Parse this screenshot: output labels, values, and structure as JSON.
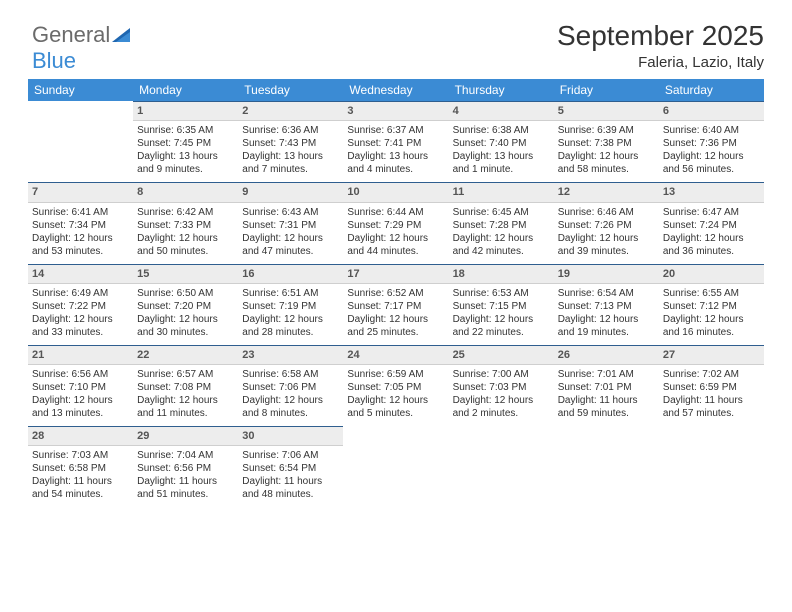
{
  "brand": {
    "name_a": "General",
    "name_b": "Blue"
  },
  "title": "September 2025",
  "location": "Faleria, Lazio, Italy",
  "colors": {
    "header_bg": "#3b8bd4",
    "header_fg": "#ffffff",
    "daynum_bg": "#ededed",
    "daynum_border_top": "#2f5e8f",
    "text": "#333333"
  },
  "weekdays": [
    "Sunday",
    "Monday",
    "Tuesday",
    "Wednesday",
    "Thursday",
    "Friday",
    "Saturday"
  ],
  "weeks": [
    [
      null,
      {
        "n": "1",
        "sr": "6:35 AM",
        "ss": "7:45 PM",
        "dl": "13 hours and 9 minutes."
      },
      {
        "n": "2",
        "sr": "6:36 AM",
        "ss": "7:43 PM",
        "dl": "13 hours and 7 minutes."
      },
      {
        "n": "3",
        "sr": "6:37 AM",
        "ss": "7:41 PM",
        "dl": "13 hours and 4 minutes."
      },
      {
        "n": "4",
        "sr": "6:38 AM",
        "ss": "7:40 PM",
        "dl": "13 hours and 1 minute."
      },
      {
        "n": "5",
        "sr": "6:39 AM",
        "ss": "7:38 PM",
        "dl": "12 hours and 58 minutes."
      },
      {
        "n": "6",
        "sr": "6:40 AM",
        "ss": "7:36 PM",
        "dl": "12 hours and 56 minutes."
      }
    ],
    [
      {
        "n": "7",
        "sr": "6:41 AM",
        "ss": "7:34 PM",
        "dl": "12 hours and 53 minutes."
      },
      {
        "n": "8",
        "sr": "6:42 AM",
        "ss": "7:33 PM",
        "dl": "12 hours and 50 minutes."
      },
      {
        "n": "9",
        "sr": "6:43 AM",
        "ss": "7:31 PM",
        "dl": "12 hours and 47 minutes."
      },
      {
        "n": "10",
        "sr": "6:44 AM",
        "ss": "7:29 PM",
        "dl": "12 hours and 44 minutes."
      },
      {
        "n": "11",
        "sr": "6:45 AM",
        "ss": "7:28 PM",
        "dl": "12 hours and 42 minutes."
      },
      {
        "n": "12",
        "sr": "6:46 AM",
        "ss": "7:26 PM",
        "dl": "12 hours and 39 minutes."
      },
      {
        "n": "13",
        "sr": "6:47 AM",
        "ss": "7:24 PM",
        "dl": "12 hours and 36 minutes."
      }
    ],
    [
      {
        "n": "14",
        "sr": "6:49 AM",
        "ss": "7:22 PM",
        "dl": "12 hours and 33 minutes."
      },
      {
        "n": "15",
        "sr": "6:50 AM",
        "ss": "7:20 PM",
        "dl": "12 hours and 30 minutes."
      },
      {
        "n": "16",
        "sr": "6:51 AM",
        "ss": "7:19 PM",
        "dl": "12 hours and 28 minutes."
      },
      {
        "n": "17",
        "sr": "6:52 AM",
        "ss": "7:17 PM",
        "dl": "12 hours and 25 minutes."
      },
      {
        "n": "18",
        "sr": "6:53 AM",
        "ss": "7:15 PM",
        "dl": "12 hours and 22 minutes."
      },
      {
        "n": "19",
        "sr": "6:54 AM",
        "ss": "7:13 PM",
        "dl": "12 hours and 19 minutes."
      },
      {
        "n": "20",
        "sr": "6:55 AM",
        "ss": "7:12 PM",
        "dl": "12 hours and 16 minutes."
      }
    ],
    [
      {
        "n": "21",
        "sr": "6:56 AM",
        "ss": "7:10 PM",
        "dl": "12 hours and 13 minutes."
      },
      {
        "n": "22",
        "sr": "6:57 AM",
        "ss": "7:08 PM",
        "dl": "12 hours and 11 minutes."
      },
      {
        "n": "23",
        "sr": "6:58 AM",
        "ss": "7:06 PM",
        "dl": "12 hours and 8 minutes."
      },
      {
        "n": "24",
        "sr": "6:59 AM",
        "ss": "7:05 PM",
        "dl": "12 hours and 5 minutes."
      },
      {
        "n": "25",
        "sr": "7:00 AM",
        "ss": "7:03 PM",
        "dl": "12 hours and 2 minutes."
      },
      {
        "n": "26",
        "sr": "7:01 AM",
        "ss": "7:01 PM",
        "dl": "11 hours and 59 minutes."
      },
      {
        "n": "27",
        "sr": "7:02 AM",
        "ss": "6:59 PM",
        "dl": "11 hours and 57 minutes."
      }
    ],
    [
      {
        "n": "28",
        "sr": "7:03 AM",
        "ss": "6:58 PM",
        "dl": "11 hours and 54 minutes."
      },
      {
        "n": "29",
        "sr": "7:04 AM",
        "ss": "6:56 PM",
        "dl": "11 hours and 51 minutes."
      },
      {
        "n": "30",
        "sr": "7:06 AM",
        "ss": "6:54 PM",
        "dl": "11 hours and 48 minutes."
      },
      null,
      null,
      null,
      null
    ]
  ],
  "labels": {
    "sunrise": "Sunrise:",
    "sunset": "Sunset:",
    "daylight": "Daylight:"
  }
}
